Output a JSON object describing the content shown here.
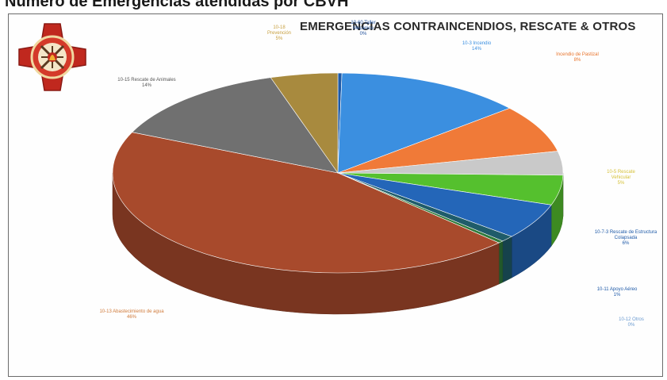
{
  "page": {
    "heading": "Numero de Emergencias atendidas por CBVH"
  },
  "chart_data": {
    "type": "pie",
    "style": "3d",
    "title": "EMERGENCIAS CONTRAINCENDIOS, RESCATE & OTROS",
    "legend": "none",
    "slices": [
      {
        "label": "10-60 Taller Mecánico",
        "pct_label": "0%",
        "value": 0.3,
        "color": "#1e5aa8"
      },
      {
        "label": "10-3 Incendio",
        "pct_label": "14%",
        "value": 14,
        "color": "#3b8fe0"
      },
      {
        "label": "Incendio de Pastizal",
        "pct_label": "8%",
        "value": 8,
        "color": "#f07a38"
      },
      {
        "label": "",
        "pct_label": "",
        "value": 4,
        "color": "#c9c9c9"
      },
      {
        "label": "10-5 Rescate Vehicular",
        "pct_label": "5%",
        "value": 5,
        "color": "#55c02e"
      },
      {
        "label": "10-7-3 Rescate de Estructura Colapsada",
        "pct_label": "6%",
        "value": 6,
        "color": "#2466b8"
      },
      {
        "label": "10-11 Apoyo Aéreo",
        "pct_label": "1%",
        "value": 1,
        "color": "#1f5c6a"
      },
      {
        "label": "10-12 Otros",
        "pct_label": "0%",
        "value": 0.4,
        "color": "#2f7a3a"
      },
      {
        "label": "10-13 Abastecimiento de agua",
        "pct_label": "46%",
        "value": 46,
        "color": "#a84a2c"
      },
      {
        "label": "10-15 Rescate de Animales",
        "pct_label": "14%",
        "value": 14,
        "color": "#707070"
      },
      {
        "label": "10-18 Prevención",
        "pct_label": "5%",
        "value": 5,
        "color": "#a88a3e"
      }
    ]
  },
  "labels": [
    {
      "name": "label-taller-mecanico",
      "text": "10-60 Taller Mecánico",
      "pct": "0%",
      "color": "#1f4f9a"
    },
    {
      "name": "label-incendio",
      "text": "10-3 Incendio",
      "pct": "14%",
      "color": "#3b8fe0"
    },
    {
      "name": "label-pastizal",
      "text": "Incendio de Pastizal",
      "pct": "8%",
      "color": "#e8742c"
    },
    {
      "name": "label-gray",
      "text": "",
      "pct": "",
      "color": "#d0d0d0"
    },
    {
      "name": "label-rescate-vehicular",
      "text": "10-5 Rescate Vehicular",
      "pct": "5%",
      "color": "#d6c23a"
    },
    {
      "name": "label-estructura",
      "text": "10-7-3 Rescate de Estructura Colapsada",
      "pct": "6%",
      "color": "#1f5aa8"
    },
    {
      "name": "label-apoyo",
      "text": "10-11 Apoyo Aéreo",
      "pct": "1%",
      "color": "#1f5aa8"
    },
    {
      "name": "label-otros",
      "text": "10-12 Otros",
      "pct": "0%",
      "color": "#6a9ad0"
    },
    {
      "name": "label-abastecimiento",
      "text": "10-13 Abastecimiento de agua",
      "pct": "46%",
      "color": "#d07a3a"
    },
    {
      "name": "label-animales",
      "text": "10-15 Rescate de Animales",
      "pct": "14%",
      "color": "#555555"
    },
    {
      "name": "label-prevencion",
      "text": "10-18 Prevención",
      "pct": "5%",
      "color": "#c8a040"
    }
  ]
}
